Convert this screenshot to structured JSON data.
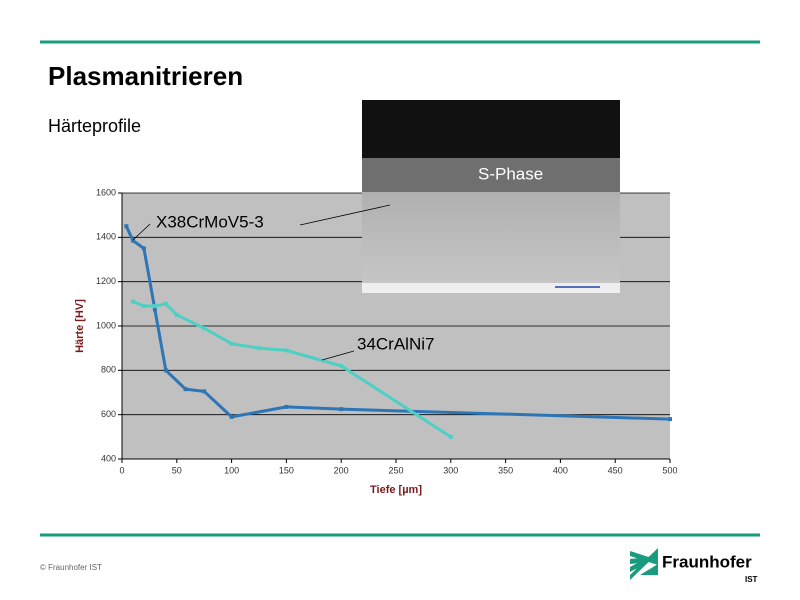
{
  "header": {
    "title": "Plasmanitrieren",
    "subtitle": "Härteprofile"
  },
  "image_label": "S-Phase",
  "footer": {
    "copyright": "© Fraunhofer IST",
    "logo": "Fraunhofer",
    "logo_sub": "IST"
  },
  "chart_data": {
    "type": "line",
    "xlabel": "Tiefe [µm]",
    "ylabel": "Härte [HV]",
    "xlim": [
      0,
      500
    ],
    "xticks": [
      0,
      50,
      100,
      150,
      200,
      250,
      300,
      350,
      400,
      450,
      500
    ],
    "ylim": [
      400,
      1600
    ],
    "yticks": [
      400,
      600,
      800,
      1000,
      1200,
      1400,
      1600
    ],
    "grid": true,
    "series": [
      {
        "name": "X38CrMoV5-3",
        "color": "#2e75b6",
        "x": [
          4,
          10,
          20,
          30,
          40,
          58,
          75,
          100,
          150,
          200,
          500
        ],
        "values": [
          1450,
          1385,
          1350,
          1075,
          800,
          715,
          705,
          590,
          635,
          625,
          580
        ]
      },
      {
        "name": "34CrAlNi7",
        "color": "#4dd0c4",
        "x": [
          10,
          20,
          30,
          40,
          50,
          75,
          100,
          125,
          150,
          200,
          300
        ],
        "values": [
          1110,
          1090,
          1090,
          1100,
          1050,
          990,
          920,
          900,
          890,
          820,
          500
        ]
      }
    ]
  }
}
